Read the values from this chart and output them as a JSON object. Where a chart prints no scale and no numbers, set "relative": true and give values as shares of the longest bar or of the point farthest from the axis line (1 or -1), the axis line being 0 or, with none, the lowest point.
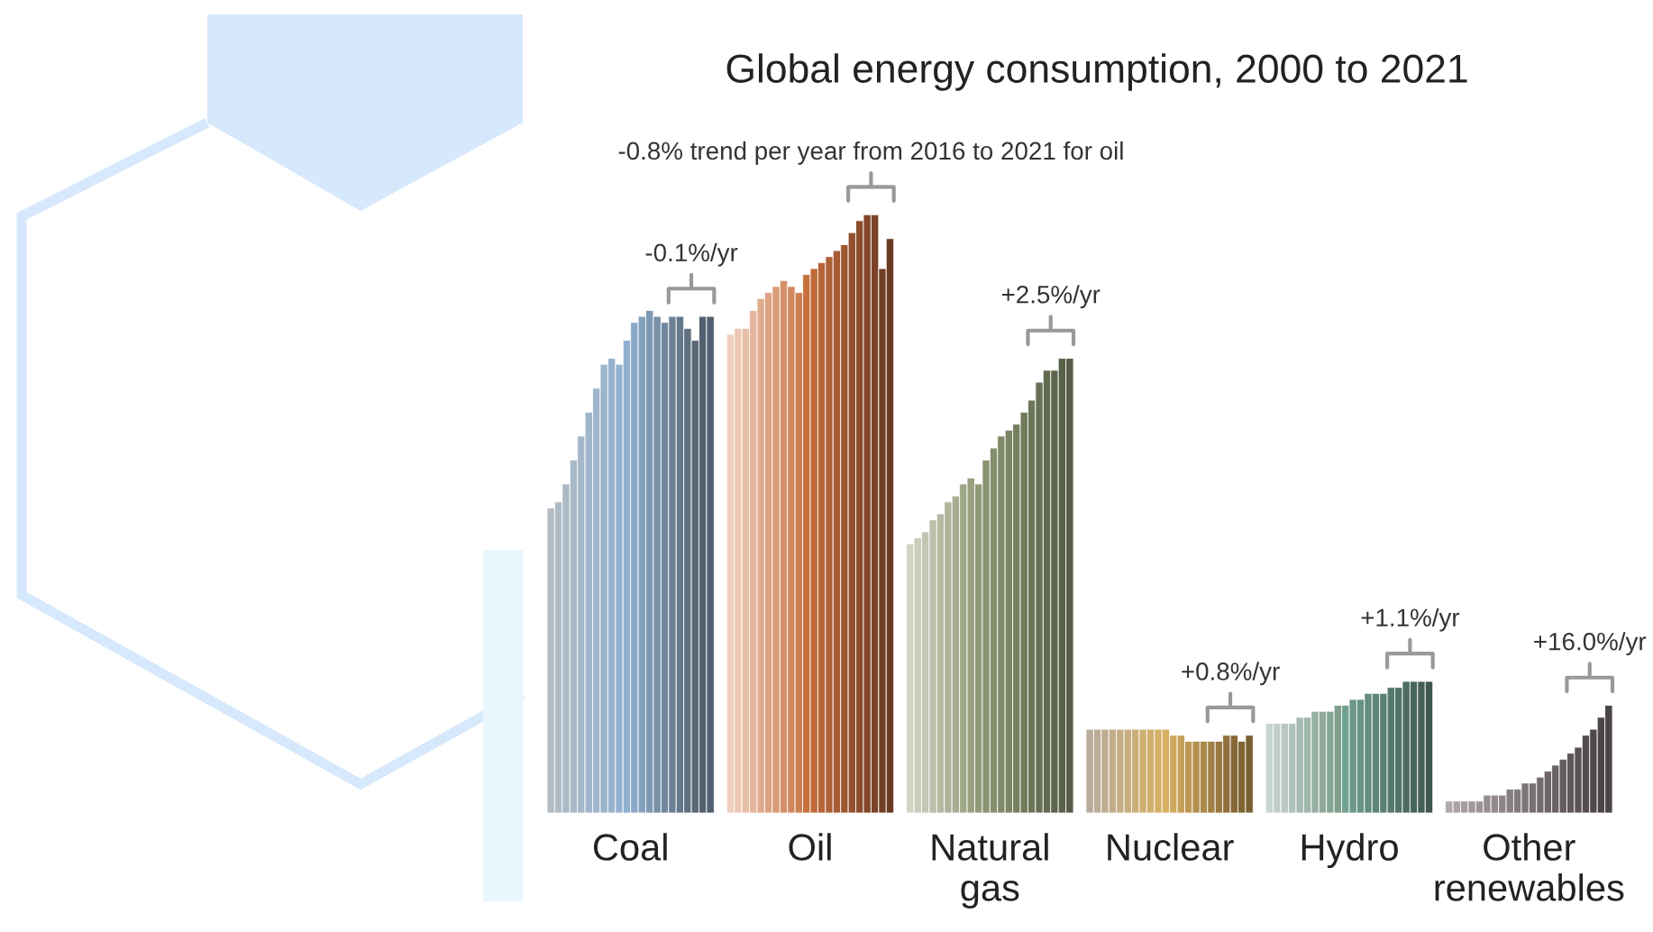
{
  "chart_data": {
    "type": "bar",
    "relative": true,
    "title": "Global energy consumption, 2000 to 2021",
    "categories": [
      "Coal",
      "Oil",
      "Natural gas",
      "Nuclear",
      "Hydro",
      "Other renewables"
    ],
    "series": [
      {
        "values": [
          0.51,
          0.8,
          0.45,
          0.14,
          0.15,
          0.02
        ],
        "colors": [
          "#b4bcc4",
          "#f0d0c0",
          "#d0d4c4",
          "#b8ac9c",
          "#c8d4d0",
          "#b0a8a8"
        ]
      },
      {
        "values": [
          0.52,
          0.81,
          0.46,
          0.14,
          0.15,
          0.02
        ],
        "colors": [
          "#b0bbc6",
          "#ecc7b4",
          "#c9cdbc",
          "#bbad96",
          "#c0cec8",
          "#aba3a3"
        ]
      },
      {
        "values": [
          0.55,
          0.81,
          0.47,
          0.14,
          0.15,
          0.02
        ],
        "colors": [
          "#acbac7",
          "#e8bea7",
          "#c2c7b3",
          "#bead90",
          "#b8c8c1",
          "#a69e9e"
        ]
      },
      {
        "values": [
          0.59,
          0.84,
          0.49,
          0.14,
          0.15,
          0.02
        ],
        "colors": [
          "#a9b9c8",
          "#e4b59b",
          "#bbc0ab",
          "#c1ad8a",
          "#afc2b9",
          "#a19999"
        ]
      },
      {
        "values": [
          0.63,
          0.86,
          0.5,
          0.14,
          0.16,
          0.02
        ],
        "colors": [
          "#a5b8c9",
          "#e0ac8e",
          "#b4baa2",
          "#c4ae84",
          "#a7bcb2",
          "#9c9494"
        ]
      },
      {
        "values": [
          0.67,
          0.87,
          0.52,
          0.14,
          0.16,
          0.03
        ],
        "colors": [
          "#a1b6ca",
          "#dca382",
          "#adb49a",
          "#c8ae7e",
          "#9fb6aa",
          "#978f8f"
        ]
      },
      {
        "values": [
          0.71,
          0.88,
          0.53,
          0.14,
          0.17,
          0.03
        ],
        "colors": [
          "#9eb5cb",
          "#d89a75",
          "#a6ad91",
          "#cbae78",
          "#97b0a3",
          "#928a8a"
        ]
      },
      {
        "values": [
          0.75,
          0.89,
          0.55,
          0.14,
          0.17,
          0.03
        ],
        "colors": [
          "#9ab4cc",
          "#d49169",
          "#9fa789",
          "#ceaf72",
          "#8faa9b",
          "#8d8585"
        ]
      },
      {
        "values": [
          0.76,
          0.88,
          0.56,
          0.14,
          0.17,
          0.04
        ],
        "colors": [
          "#96b3cd",
          "#d0885c",
          "#98a080",
          "#d1af6c",
          "#87a594",
          "#888080"
        ]
      },
      {
        "values": [
          0.75,
          0.87,
          0.55,
          0.14,
          0.18,
          0.04
        ],
        "colors": [
          "#93b2cf",
          "#cc7f50",
          "#919a78",
          "#d4b066",
          "#7f9f8c",
          "#837b7b"
        ]
      },
      {
        "values": [
          0.79,
          0.9,
          0.59,
          0.14,
          0.18,
          0.05
        ],
        "colors": [
          "#8fb0d0",
          "#c8703c",
          "#8a9470",
          "#d8b060",
          "#70a090",
          "#7e7676"
        ]
      },
      {
        "values": [
          0.82,
          0.91,
          0.61,
          0.13,
          0.19,
          0.05
        ],
        "colors": [
          "#89a8c6",
          "#c06a3a",
          "#858f6c",
          "#cfa85b",
          "#6c9a8a",
          "#797171"
        ]
      },
      {
        "values": [
          0.83,
          0.92,
          0.63,
          0.13,
          0.19,
          0.06
        ],
        "colors": [
          "#83a0bc",
          "#b76538",
          "#808a68",
          "#c6a057",
          "#679384",
          "#746c6c"
        ]
      },
      {
        "values": [
          0.84,
          0.93,
          0.64,
          0.12,
          0.2,
          0.07
        ],
        "colors": [
          "#7d98b2",
          "#ae6036",
          "#7b8564",
          "#bd9852",
          "#638d7e",
          "#6f6767"
        ]
      },
      {
        "values": [
          0.83,
          0.94,
          0.65,
          0.12,
          0.2,
          0.08
        ],
        "colors": [
          "#7790a8",
          "#a65b33",
          "#768060",
          "#b4904e",
          "#5e8678",
          "#6a6262"
        ]
      },
      {
        "values": [
          0.82,
          0.95,
          0.67,
          0.12,
          0.2,
          0.09
        ],
        "colors": [
          "#71889e",
          "#9d5631",
          "#717b5c",
          "#ab8849",
          "#5a8072",
          "#655d5d"
        ]
      },
      {
        "values": [
          0.83,
          0.97,
          0.69,
          0.12,
          0.21,
          0.1
        ],
        "colors": [
          "#6b8094",
          "#95512f",
          "#6c7658",
          "#a28045",
          "#55796b",
          "#605858"
        ]
      },
      {
        "values": [
          0.83,
          0.99,
          0.72,
          0.12,
          0.21,
          0.11
        ],
        "colors": [
          "#65788a",
          "#8c4c2c",
          "#677054",
          "#997840",
          "#517365",
          "#5b5353"
        ]
      },
      {
        "values": [
          0.81,
          1.0,
          0.74,
          0.13,
          0.22,
          0.13
        ],
        "colors": [
          "#5f7080",
          "#83472a",
          "#626b50",
          "#90703c",
          "#4c6c5f",
          "#564e4e"
        ]
      },
      {
        "values": [
          0.79,
          1.0,
          0.74,
          0.13,
          0.22,
          0.14
        ],
        "colors": [
          "#5a6877",
          "#7b4228",
          "#5d664c",
          "#876837",
          "#486659",
          "#514949"
        ]
      },
      {
        "values": [
          0.83,
          0.91,
          0.76,
          0.12,
          0.22,
          0.16
        ],
        "colors": [
          "#54606f",
          "#723e24",
          "#5a6149",
          "#7f6433",
          "#445f54",
          "#4c4646"
        ]
      },
      {
        "values": [
          0.83,
          0.96,
          0.76,
          0.13,
          0.22,
          0.18
        ],
        "colors": [
          "#4f5f6f",
          "#6a3a20",
          "#585c48",
          "#7a6030",
          "#405850",
          "#4a4444"
        ]
      }
    ],
    "annotations": [
      "-0.1%/yr",
      "-0.8% trend per year from 2016 to 2021 for oil",
      "+2.5%/yr",
      "+0.8%/yr",
      "+1.1%/yr",
      "+16.0%/yr"
    ],
    "grid": false,
    "legend": false
  }
}
